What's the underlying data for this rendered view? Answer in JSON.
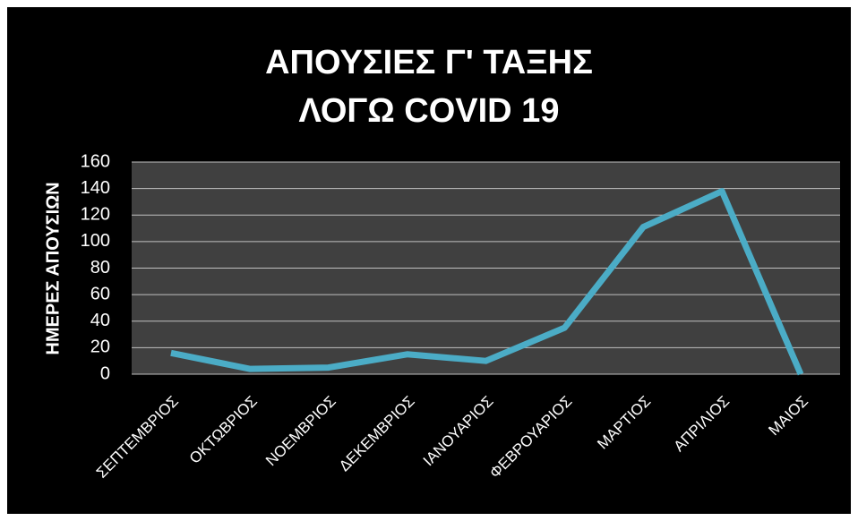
{
  "chart_data": {
    "type": "line",
    "title": [
      "ΑΠΟΥΣΙΕΣ Γ' ΤΑΞΗΣ",
      "ΛΟΓΩ COVID 19"
    ],
    "y_label": "ΗΜΕΡΕΣ ΑΠΟΥΣΙΩΝ",
    "categories": [
      "ΣΕΠΤΕΜΒΡΙΟΣ",
      "ΟΚΤΩΒΡΙΟΣ",
      "ΝΟΕΜΒΡΙΟΣ",
      "ΔΕΚΕΜΒΡΙΟΣ",
      "ΙΑΝΟΥΑΡΙΟΣ",
      "ΦΕΒΡΟΥΑΡΙΟΣ",
      "ΜΑΡΤΙΟΣ",
      "ΑΠΡΙΛΙΟΣ",
      "ΜΑΙΟΣ"
    ],
    "values": [
      16,
      4,
      5,
      15,
      10,
      35,
      111,
      138,
      0
    ],
    "color": "#4bacc6",
    "ylim": [
      0,
      160
    ],
    "yticks": [
      0,
      20,
      40,
      60,
      80,
      100,
      120,
      140,
      160
    ],
    "grid": true
  }
}
